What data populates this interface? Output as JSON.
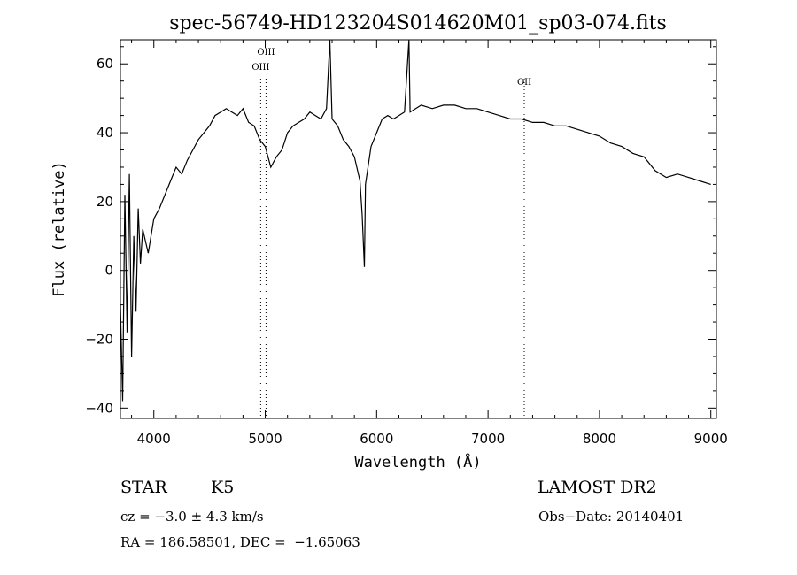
{
  "chart_data": {
    "type": "line",
    "title": "spec-56749-HD123204S014620M01_sp03-074.fits",
    "xlabel": "Wavelength (Å)",
    "ylabel": "Flux (relative)",
    "xlim": [
      3700,
      9050
    ],
    "ylim": [
      -43,
      67
    ],
    "xticks": [
      4000,
      5000,
      6000,
      7000,
      8000,
      9000
    ],
    "yticks": [
      -40,
      -20,
      0,
      20,
      40,
      60
    ],
    "grid": false,
    "series": [
      {
        "x": [
          3700,
          3720,
          3740,
          3760,
          3780,
          3800,
          3820,
          3840,
          3860,
          3880,
          3900,
          3950,
          4000,
          4050,
          4100,
          4150,
          4200,
          4250,
          4300,
          4350,
          4400,
          4450,
          4500,
          4550,
          4600,
          4650,
          4700,
          4750,
          4800,
          4850,
          4900,
          4950,
          5000,
          5050,
          5100,
          5150,
          5200,
          5250,
          5300,
          5350,
          5400,
          5450,
          5500,
          5550,
          5580,
          5600,
          5650,
          5700,
          5750,
          5800,
          5850,
          5870,
          5890,
          5900,
          5950,
          6000,
          6050,
          6100,
          6150,
          6200,
          6250,
          6290,
          6300,
          6350,
          6400,
          6500,
          6600,
          6700,
          6800,
          6900,
          7000,
          7100,
          7200,
          7300,
          7400,
          7500,
          7600,
          7700,
          7800,
          7900,
          8000,
          8100,
          8200,
          8300,
          8400,
          8500,
          8600,
          8700,
          8800,
          8900,
          9000
        ],
        "y": [
          -10,
          -38,
          22,
          -18,
          28,
          -25,
          10,
          -12,
          18,
          2,
          12,
          5,
          15,
          18,
          22,
          26,
          30,
          28,
          32,
          35,
          38,
          40,
          42,
          45,
          46,
          47,
          46,
          45,
          47,
          43,
          42,
          38,
          36,
          30,
          33,
          35,
          40,
          42,
          43,
          44,
          46,
          45,
          44,
          47,
          67,
          44,
          42,
          38,
          36,
          33,
          26,
          16,
          1,
          25,
          36,
          40,
          44,
          45,
          44,
          45,
          46,
          67,
          46,
          47,
          48,
          47,
          48,
          48,
          47,
          47,
          46,
          45,
          44,
          44,
          43,
          43,
          42,
          42,
          41,
          40,
          39,
          37,
          36,
          34,
          33,
          29,
          27,
          28,
          27,
          26,
          25
        ]
      }
    ],
    "lines": [
      {
        "label": "OIII",
        "x": 4959
      },
      {
        "label": "OIII",
        "x": 5007
      },
      {
        "label": "OII",
        "x": 7325
      }
    ]
  },
  "info": {
    "object_class": "STAR",
    "subclass": "K5",
    "survey": "LAMOST DR2",
    "cz": "cz = −3.0 ± 4.3 km/s",
    "obs_date": "Obs−Date: 20140401",
    "coords": "RA = 186.58501, DEC =  −1.65063"
  }
}
